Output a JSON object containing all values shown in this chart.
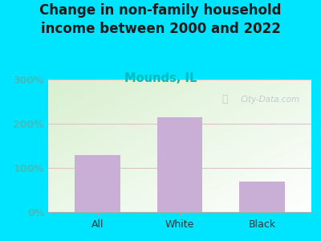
{
  "title": "Change in non-family household\nincome between 2000 and 2022",
  "subtitle": "Mounds, IL",
  "categories": [
    "All",
    "White",
    "Black"
  ],
  "values": [
    130,
    215,
    70
  ],
  "bar_color": "#c9aed6",
  "title_color": "#1a1a1a",
  "subtitle_color": "#00bbbb",
  "outer_bg_color": "#00e5ff",
  "ytick_color": "#44bbbb",
  "xtick_color": "#333333",
  "ylim": [
    0,
    300
  ],
  "yticks": [
    0,
    100,
    200,
    300
  ],
  "ytick_labels": [
    "0%",
    "100%",
    "200%",
    "300%"
  ],
  "watermark": "City-Data.com",
  "watermark_color": "#b8c4cc",
  "grid_color": "#e0c0cc",
  "title_fontsize": 12,
  "subtitle_fontsize": 10.5,
  "tick_fontsize": 9
}
